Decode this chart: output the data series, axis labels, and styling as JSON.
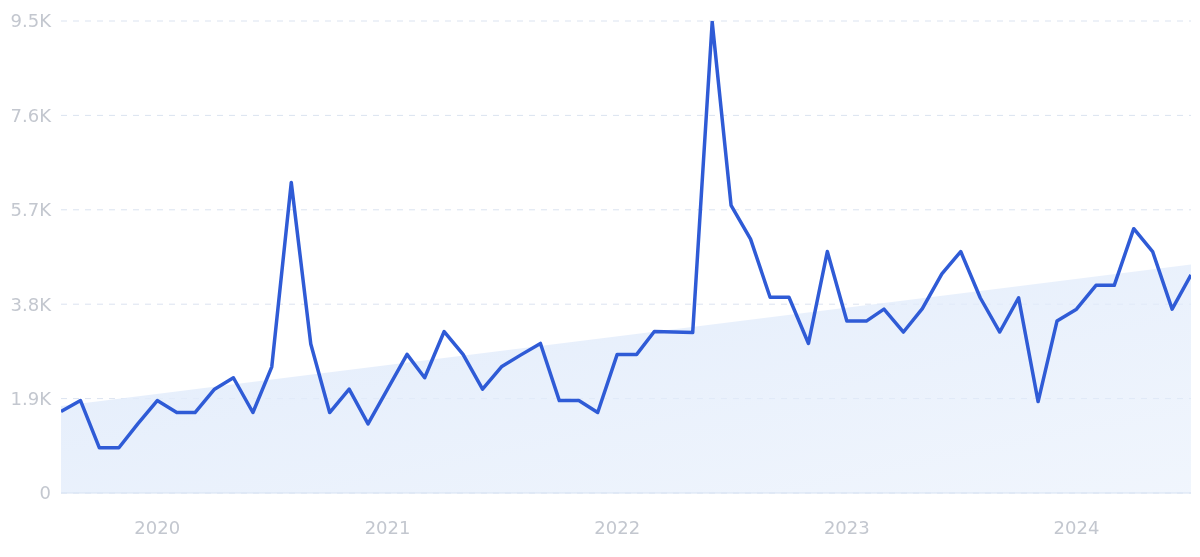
{
  "chart_data": {
    "type": "line",
    "x": [
      "2019-08",
      "2019-09",
      "2019-10",
      "2019-11",
      "2019-12",
      "2020-01",
      "2020-02",
      "2020-03",
      "2020-04",
      "2020-05",
      "2020-06",
      "2020-07",
      "2020-08",
      "2020-09",
      "2020-10",
      "2020-11",
      "2020-12",
      "2021-01",
      "2021-02",
      "2021-03",
      "2021-04",
      "2021-05",
      "2021-06",
      "2021-07",
      "2021-08",
      "2021-09",
      "2021-10",
      "2021-11",
      "2021-12",
      "2022-01",
      "2022-02",
      "2022-03",
      "2022-04",
      "2022-05",
      "2022-06",
      "2022-07",
      "2022-08",
      "2022-09",
      "2022-10",
      "2022-11",
      "2022-12",
      "2023-01",
      "2023-02",
      "2023-03",
      "2023-04",
      "2023-05",
      "2023-06",
      "2023-07",
      "2023-08",
      "2023-09",
      "2023-10",
      "2023-11",
      "2023-12",
      "2024-01",
      "2024-02",
      "2024-03",
      "2024-04",
      "2024-05",
      "2024-06",
      "2024-07"
    ],
    "series": [
      {
        "type": "area",
        "color": "#e2ecfb",
        "x": [
          "2019-08",
          "2024-07"
        ],
        "values": [
          1750,
          4600
        ]
      },
      {
        "color": "#2f5bd6",
        "values": [
          1640,
          1860,
          910,
          910,
          1390,
          1860,
          1620,
          1620,
          2090,
          2320,
          1620,
          2540,
          6250,
          3000,
          1620,
          2090,
          1390,
          2090,
          2790,
          2320,
          3250,
          2790,
          2090,
          2540,
          2780,
          3010,
          1860,
          1860,
          1620,
          2790,
          2790,
          3250,
          3240,
          3230,
          9480,
          5790,
          5110,
          3940,
          3940,
          3010,
          4860,
          3460,
          3460,
          3700,
          3240,
          3710,
          4410,
          4860,
          3930,
          3240,
          3930,
          1840,
          3460,
          3700,
          4180,
          4180,
          5320,
          4860,
          3700,
          4390
        ]
      }
    ],
    "xlim": [
      "2019-08",
      "2024-07"
    ],
    "xticks": [
      "2020",
      "2021",
      "2022",
      "2023",
      "2024"
    ],
    "ylim": [
      0,
      9500
    ],
    "yticks": [
      0,
      {
        "value": 1900,
        "label": "1.9K"
      },
      {
        "value": 3800,
        "label": "3.8K"
      },
      {
        "value": 5700,
        "label": "5.7K"
      },
      {
        "value": 7600,
        "label": "7.6K"
      },
      {
        "value": 9500,
        "label": "9.5K"
      }
    ],
    "grid": "y",
    "marker": "none"
  }
}
